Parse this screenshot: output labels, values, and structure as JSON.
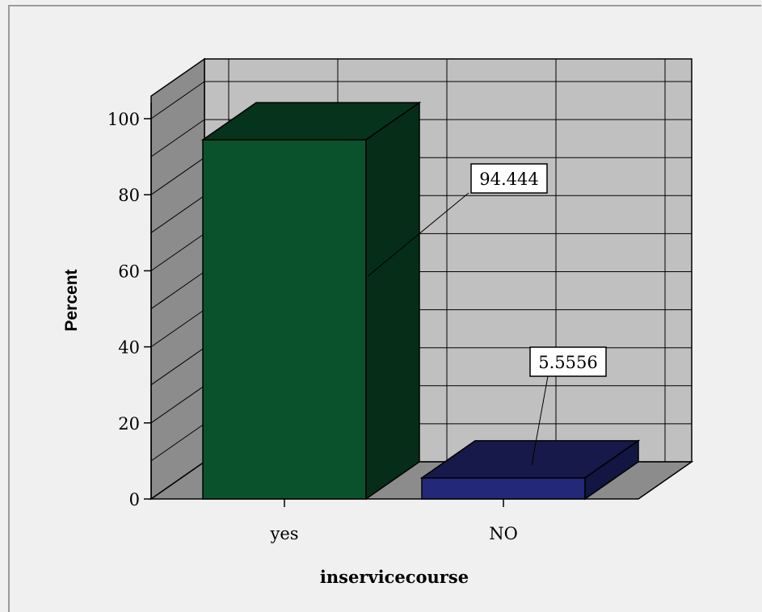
{
  "chart_data": {
    "type": "bar",
    "categories": [
      "yes",
      "NO"
    ],
    "values": [
      94.444,
      5.5556
    ],
    "value_labels": [
      "94.444",
      "5.5556"
    ],
    "colors": [
      "#0a522b",
      "#232878"
    ],
    "xlabel": "inservicecourse",
    "ylabel": "Percent",
    "ylim": [
      0,
      100
    ],
    "yticks": [
      0,
      20,
      40,
      60,
      80,
      100
    ],
    "grid": true,
    "style": "3d"
  }
}
